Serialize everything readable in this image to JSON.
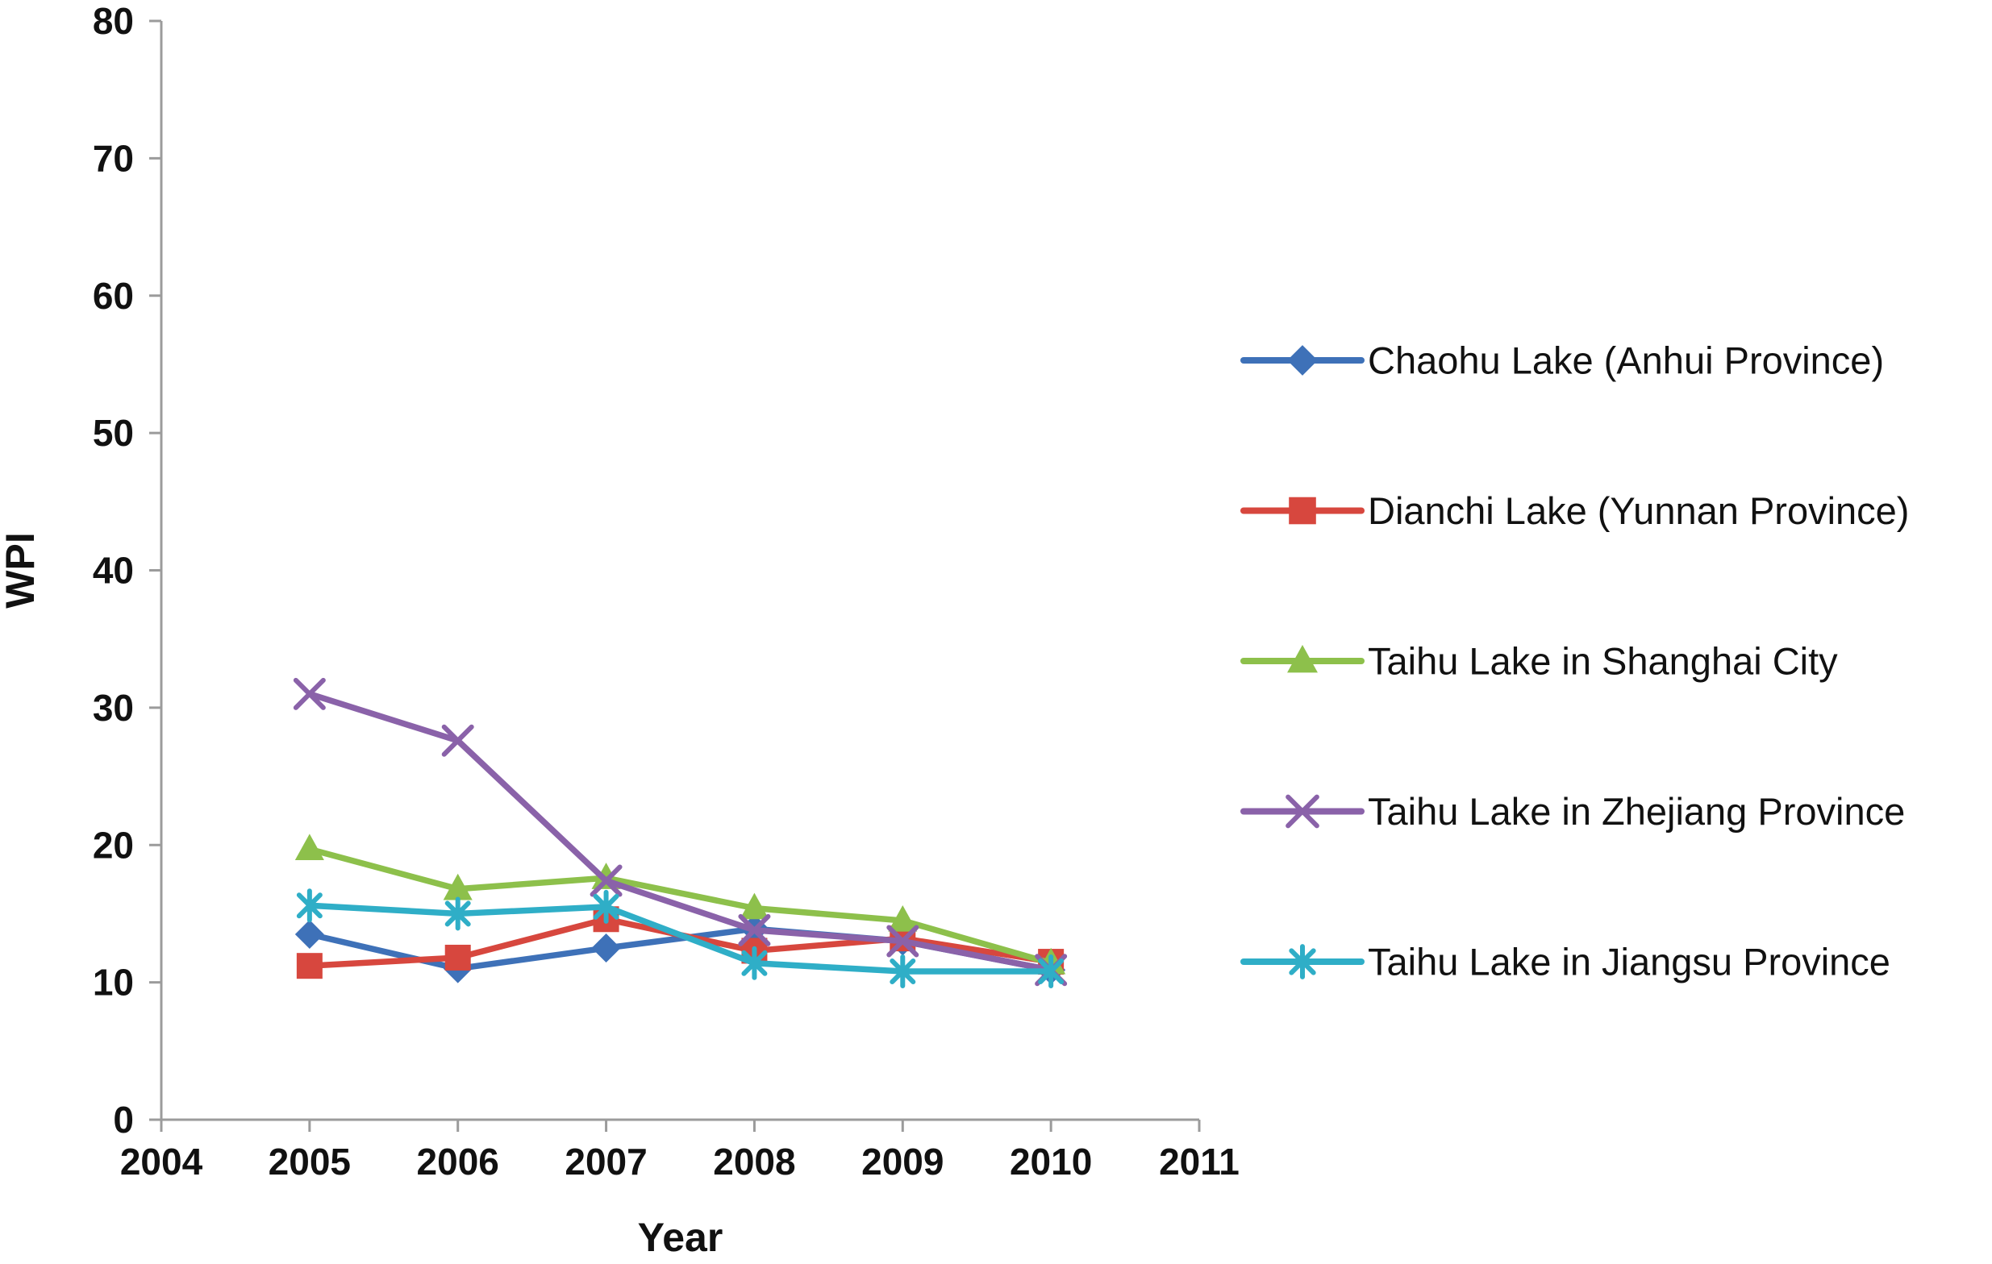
{
  "page": {
    "background": "#ffffff"
  },
  "chart_data": {
    "type": "line",
    "title": "",
    "xlabel": "Year",
    "ylabel": "WPI",
    "xlim": [
      2004,
      2011
    ],
    "ylim": [
      0,
      80
    ],
    "xticks": [
      2004,
      2005,
      2006,
      2007,
      2008,
      2009,
      2010,
      2011
    ],
    "yticks": [
      0,
      10,
      20,
      30,
      40,
      50,
      60,
      70,
      80
    ],
    "grid": false,
    "legend_position": "right",
    "axis_color": "#9b9b9b",
    "text_color": "#111111",
    "x": [
      2005,
      2006,
      2007,
      2008,
      2009,
      2010
    ],
    "series": [
      {
        "name": "Chaohu Lake (Anhui Province)",
        "color": "#3E71B8",
        "marker": "diamond",
        "values": [
          13.5,
          11.0,
          12.5,
          13.9,
          13.0,
          10.9
        ]
      },
      {
        "name": "Dianchi Lake (Yunnan Province)",
        "color": "#D7473E",
        "marker": "square",
        "values": [
          11.2,
          11.8,
          14.6,
          12.3,
          13.2,
          11.5
        ]
      },
      {
        "name": "Taihu Lake in Shanghai City",
        "color": "#8DC04B",
        "marker": "triangle",
        "values": [
          19.7,
          16.8,
          17.6,
          15.4,
          14.5,
          11.4
        ]
      },
      {
        "name": "Taihu Lake in Zhejiang Province",
        "color": "#8A62A9",
        "marker": "x",
        "values": [
          31.0,
          27.6,
          17.4,
          13.8,
          13.0,
          10.9
        ]
      },
      {
        "name": "Taihu Lake in Jiangsu Province",
        "color": "#2FAEC7",
        "marker": "asterisk",
        "values": [
          15.6,
          15.0,
          15.5,
          11.4,
          10.8,
          10.8
        ]
      }
    ]
  }
}
